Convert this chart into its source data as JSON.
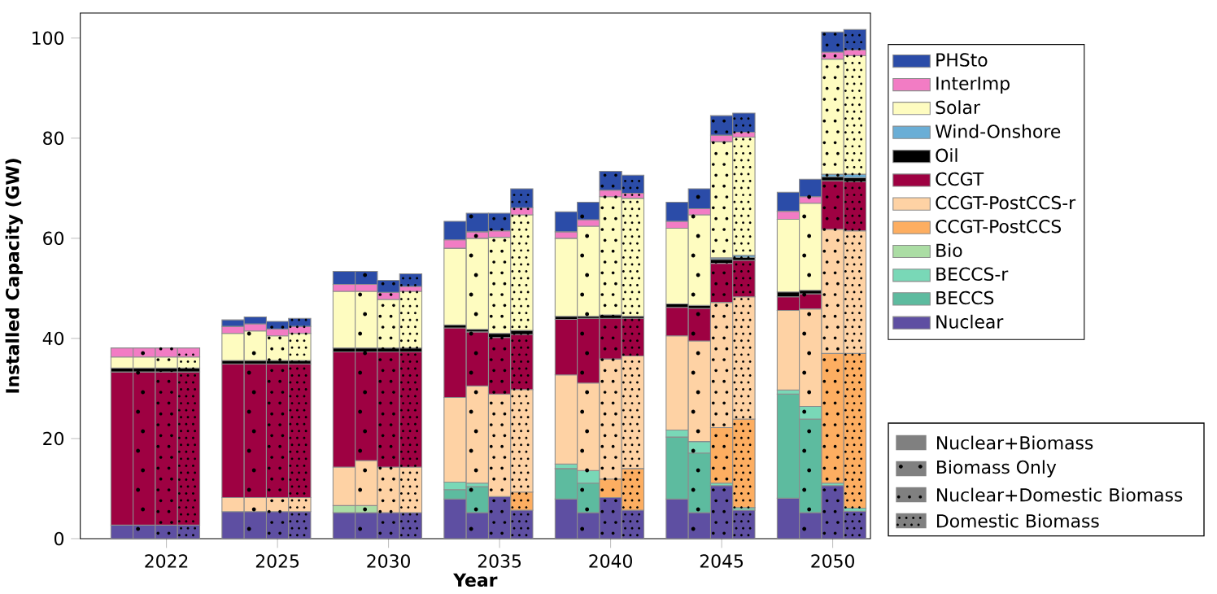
{
  "chart_data": {
    "type": "bar",
    "stacked": true,
    "xlabel": "Year",
    "ylabel": "Installed Capacity (GW)",
    "categories": [
      null,
      null,
      "2022",
      null,
      null,
      null,
      null,
      "2025",
      null,
      null,
      null,
      null,
      "2030",
      null,
      null,
      null,
      null,
      "2035",
      null,
      null,
      null,
      null,
      "2040",
      null,
      null,
      null,
      null,
      "2045",
      null,
      null,
      null,
      null,
      "2050",
      null
    ],
    "ylim": [
      0,
      105
    ],
    "yticks": [
      0,
      20,
      40,
      60,
      80,
      100
    ],
    "legend": "right",
    "series": [
      {
        "name": "Nuclear",
        "color": "#5e4fa2",
        "values": [
          2.7,
          2.7,
          2.7,
          2.7,
          null,
          5.4,
          5.4,
          5.4,
          5.4,
          null,
          5.2,
          5.2,
          5.2,
          5.2,
          null,
          7.9,
          5.2,
          8.4,
          5.7,
          null,
          7.9,
          5.2,
          8.2,
          5.7,
          null,
          7.9,
          5.2,
          10.6,
          5.7,
          null,
          8.1,
          5.2,
          10.6,
          5.5
        ]
      },
      {
        "name": "BECCS",
        "color": "#5dbb9f",
        "values": [
          0,
          0,
          0,
          0,
          null,
          0,
          0,
          0,
          0,
          null,
          0,
          0,
          0,
          0,
          null,
          1.9,
          5.2,
          0,
          0,
          null,
          6.1,
          5.9,
          0,
          0,
          null,
          12.4,
          11.9,
          0,
          0,
          null,
          20.8,
          18.7,
          0,
          0
        ]
      },
      {
        "name": "BECCS-r",
        "color": "#79d8b7",
        "values": [
          0,
          0,
          0,
          0,
          null,
          0,
          0,
          0,
          0,
          null,
          0,
          0,
          0,
          0,
          null,
          1.5,
          0.7,
          0,
          0,
          null,
          0.9,
          2.5,
          0,
          0,
          null,
          1.4,
          2.3,
          0.5,
          0.5,
          null,
          0.8,
          2.5,
          0.5,
          0.6
        ]
      },
      {
        "name": "Bio",
        "color": "#abdda4",
        "values": [
          0,
          0,
          0,
          0,
          null,
          0,
          0,
          0,
          0,
          null,
          1.4,
          1.4,
          0,
          0,
          null,
          0,
          0,
          0,
          0,
          null,
          0,
          0,
          0,
          0,
          null,
          0,
          0,
          0,
          0,
          null,
          0,
          0,
          0,
          0
        ]
      },
      {
        "name": "CCGT-PostCCS",
        "color": "#fdae61",
        "values": [
          0,
          0,
          0,
          0,
          null,
          0,
          0,
          0,
          0,
          null,
          0,
          0,
          0,
          0,
          null,
          0,
          0,
          0,
          3.6,
          null,
          0,
          0,
          3.7,
          8.3,
          null,
          0,
          0,
          11.1,
          17.7,
          null,
          0,
          0,
          25.9,
          30.9
        ]
      },
      {
        "name": "CCGT-PostCCS-r",
        "color": "#fed2a4",
        "values": [
          0,
          0,
          0,
          0,
          null,
          2.8,
          2.8,
          2.8,
          2.8,
          null,
          7.7,
          9.0,
          9.1,
          9.1,
          null,
          16.9,
          19.4,
          20.5,
          20.5,
          null,
          17.8,
          17.5,
          24.0,
          22.5,
          null,
          18.8,
          20.1,
          25.0,
          24.4,
          null,
          15.9,
          19.5,
          24.8,
          24.5
        ]
      },
      {
        "name": "CCGT",
        "color": "#9e0142",
        "values": [
          30.6,
          30.6,
          30.6,
          30.6,
          null,
          26.7,
          26.7,
          26.7,
          26.7,
          null,
          23.0,
          21.7,
          23.0,
          23.0,
          null,
          13.9,
          10.8,
          11.3,
          11.0,
          null,
          11.1,
          12.9,
          8.1,
          7.5,
          null,
          5.7,
          6.5,
          7.8,
          7.3,
          null,
          2.7,
          3.0,
          9.7,
          9.8
        ]
      },
      {
        "name": "Oil",
        "color": "#000000",
        "values": [
          0.8,
          0.8,
          0.8,
          0.8,
          null,
          0.7,
          0.7,
          0.7,
          0.7,
          null,
          0.8,
          0.8,
          0.8,
          0.8,
          null,
          0.6,
          0.5,
          0.8,
          0.8,
          null,
          0.6,
          0.4,
          0.7,
          0.4,
          null,
          0.7,
          0.6,
          0.8,
          0.6,
          null,
          1.0,
          0.7,
          0.8,
          0.8
        ]
      },
      {
        "name": "Wind-Onshore",
        "color": "#6aaed6",
        "values": [
          0,
          0,
          0,
          0,
          null,
          0,
          0,
          0,
          0,
          null,
          0,
          0,
          0,
          0,
          null,
          0,
          0,
          0,
          0,
          null,
          0,
          0,
          0,
          0,
          null,
          0,
          0,
          0.3,
          0.4,
          null,
          0,
          0,
          0.5,
          0.7
        ]
      },
      {
        "name": "Solar",
        "color": "#fefcc0",
        "values": [
          2.2,
          2.2,
          2.2,
          2.2,
          null,
          5.4,
          5.9,
          4.9,
          5.4,
          null,
          11.3,
          11.3,
          9.7,
          11.3,
          null,
          15.3,
          18.2,
          19.2,
          23.1,
          null,
          15.6,
          18.0,
          23.6,
          23.6,
          null,
          15.1,
          18.1,
          23.2,
          23.6,
          null,
          14.5,
          17.4,
          23.0,
          23.7
        ]
      },
      {
        "name": "InterImp",
        "color": "#f27cc4",
        "values": [
          1.8,
          1.8,
          1.8,
          1.8,
          null,
          1.4,
          1.4,
          1.4,
          1.4,
          null,
          1.4,
          1.4,
          1.4,
          1.0,
          null,
          1.7,
          1.3,
          1.3,
          1.4,
          null,
          1.3,
          1.3,
          1.3,
          1.0,
          null,
          1.4,
          1.2,
          1.3,
          1.0,
          null,
          1.6,
          1.3,
          1.4,
          1.1
        ]
      },
      {
        "name": "PHSto",
        "color": "#2b4ca8",
        "values": [
          0,
          0,
          0,
          0,
          null,
          1.3,
          1.4,
          1.5,
          1.6,
          null,
          2.6,
          2.6,
          2.4,
          2.5,
          null,
          3.7,
          3.7,
          3.5,
          3.8,
          null,
          4.0,
          3.5,
          3.8,
          3.6,
          null,
          3.8,
          4.0,
          3.9,
          3.8,
          null,
          3.8,
          3.5,
          4.0,
          4.1
        ]
      }
    ],
    "annotations": [
      "Nuclear+Biomass",
      "Biomass Only",
      "Nuclear+Domestic Biomass",
      "Domestic Biomass"
    ]
  }
}
